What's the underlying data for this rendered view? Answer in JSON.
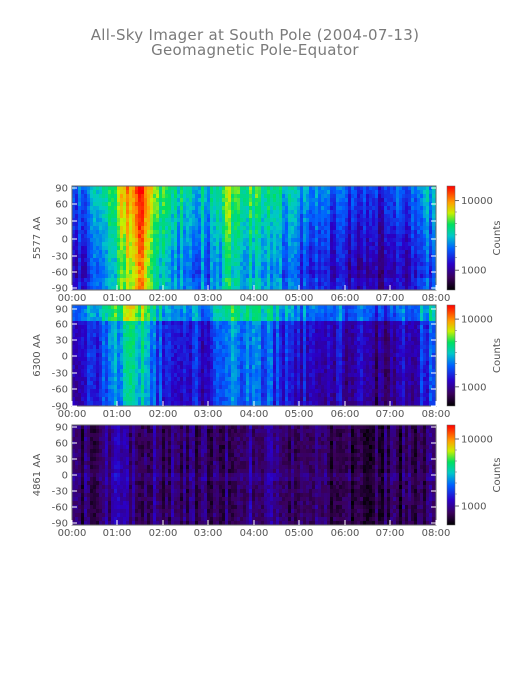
{
  "title": "All-Sky Imager at South Pole (2004-07-13)",
  "subtitle": "Geomagnetic Pole-Equator",
  "chart_data": {
    "type": "heatmap",
    "x_ticks": [
      "00:00",
      "01:00",
      "02:00",
      "03:00",
      "04:00",
      "05:00",
      "06:00",
      "07:00",
      "08:00"
    ],
    "y_ticks": [
      "90",
      "60",
      "30",
      "0",
      "-30",
      "-60",
      "-90"
    ],
    "ylim": [
      -90,
      90
    ],
    "xlim": [
      "00:00",
      "08:00"
    ],
    "colorbar_label": "Counts",
    "colorbar_ticks": [
      "10000",
      "1000"
    ],
    "panels": [
      {
        "ylabel": "5577 AA",
        "intensity_by_hour": [
          {
            "t": "00:00",
            "level": 0.15
          },
          {
            "t": "01:00",
            "level": 0.55
          },
          {
            "t": "01:30",
            "level": 0.85
          },
          {
            "t": "02:00",
            "level": 0.45
          },
          {
            "t": "03:00",
            "level": 0.35
          },
          {
            "t": "03:30",
            "level": 0.55
          },
          {
            "t": "04:00",
            "level": 0.45
          },
          {
            "t": "05:00",
            "level": 0.3
          },
          {
            "t": "06:00",
            "level": 0.2
          },
          {
            "t": "07:00",
            "level": 0.15
          },
          {
            "t": "08:00",
            "level": 0.35
          }
        ]
      },
      {
        "ylabel": "6300 AA",
        "intensity_by_hour": [
          {
            "t": "00:00",
            "level": 0.2
          },
          {
            "t": "01:00",
            "level": 0.5
          },
          {
            "t": "01:30",
            "level": 0.6
          },
          {
            "t": "02:00",
            "level": 0.35
          },
          {
            "t": "03:00",
            "level": 0.3
          },
          {
            "t": "03:30",
            "level": 0.45
          },
          {
            "t": "04:00",
            "level": 0.45
          },
          {
            "t": "05:00",
            "level": 0.3
          },
          {
            "t": "06:00",
            "level": 0.25
          },
          {
            "t": "07:00",
            "level": 0.2
          },
          {
            "t": "08:00",
            "level": 0.4
          }
        ]
      },
      {
        "ylabel": "4861 AA",
        "intensity_by_hour": [
          {
            "t": "00:00",
            "level": 0.1
          },
          {
            "t": "01:00",
            "level": 0.2
          },
          {
            "t": "02:00",
            "level": 0.15
          },
          {
            "t": "03:00",
            "level": 0.12
          },
          {
            "t": "04:00",
            "level": 0.18
          },
          {
            "t": "05:00",
            "level": 0.15
          },
          {
            "t": "06:00",
            "level": 0.12
          },
          {
            "t": "07:00",
            "level": 0.1
          },
          {
            "t": "08:00",
            "level": 0.15
          }
        ]
      }
    ]
  }
}
